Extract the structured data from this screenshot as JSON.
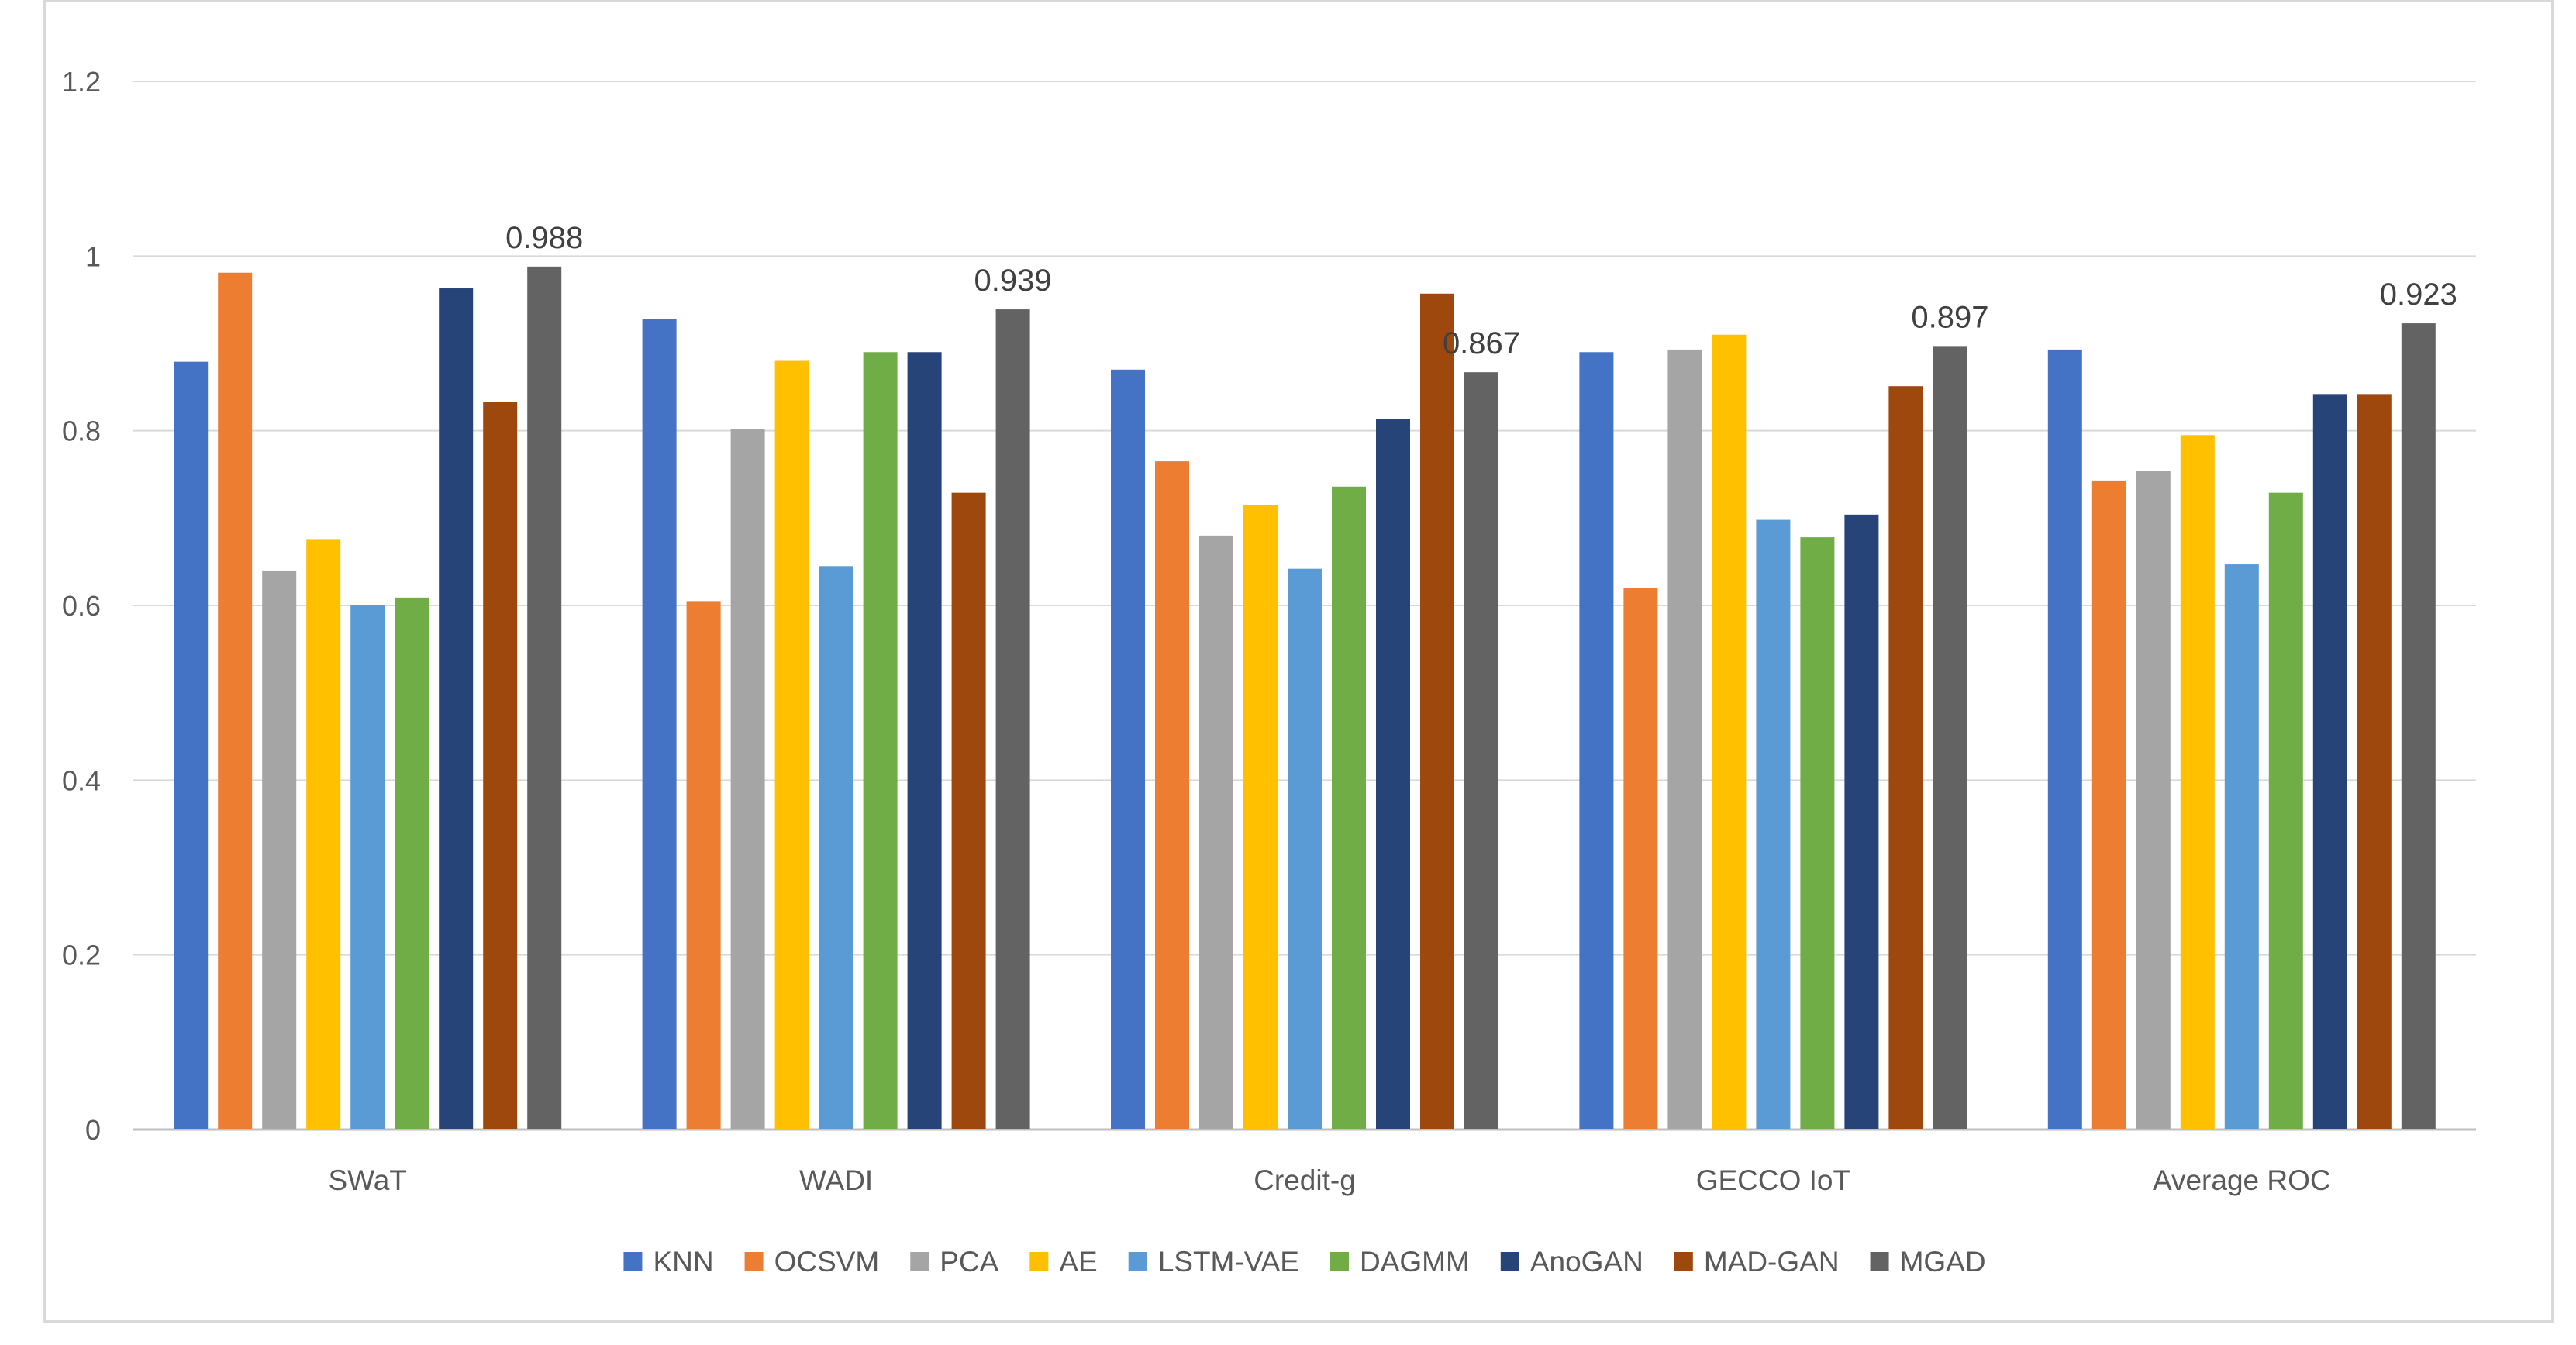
{
  "chart_data": {
    "type": "bar",
    "title": "",
    "xlabel": "",
    "ylabel": "",
    "ylim": [
      0,
      1.2
    ],
    "yticks": [
      0,
      0.2,
      0.4,
      0.6,
      0.8,
      1,
      1.2
    ],
    "ytick_labels": [
      "0",
      "0.2",
      "0.4",
      "0.6",
      "0.8",
      "1",
      "1.2"
    ],
    "categories": [
      "SWaT",
      "WADI",
      "Credit-g",
      "GECCO IoT",
      "Average ROC"
    ],
    "series": [
      {
        "name": "KNN",
        "color": "#4472c4",
        "values": [
          0.879,
          0.928,
          0.87,
          0.89,
          0.893
        ]
      },
      {
        "name": "OCSVM",
        "color": "#ed7d31",
        "values": [
          0.981,
          0.605,
          0.765,
          0.62,
          0.743
        ]
      },
      {
        "name": "PCA",
        "color": "#a5a5a5",
        "values": [
          0.64,
          0.802,
          0.68,
          0.893,
          0.754
        ]
      },
      {
        "name": "AE",
        "color": "#ffc000",
        "values": [
          0.676,
          0.88,
          0.715,
          0.91,
          0.795
        ]
      },
      {
        "name": "LSTM-VAE",
        "color": "#5b9bd5",
        "values": [
          0.6,
          0.645,
          0.642,
          0.698,
          0.647
        ]
      },
      {
        "name": "DAGMM",
        "color": "#70ad47",
        "values": [
          0.609,
          0.89,
          0.736,
          0.678,
          0.729
        ]
      },
      {
        "name": "AnoGAN",
        "color": "#264478",
        "values": [
          0.963,
          0.89,
          0.813,
          0.704,
          0.842
        ]
      },
      {
        "name": "MAD-GAN",
        "color": "#9e480e",
        "values": [
          0.833,
          0.729,
          0.957,
          0.851,
          0.842
        ]
      },
      {
        "name": "MGAD",
        "color": "#636363",
        "values": [
          0.988,
          0.939,
          0.867,
          0.897,
          0.923
        ]
      }
    ],
    "data_labels": {
      "series": "MGAD",
      "texts": [
        "0.988",
        "0.939",
        "0.867",
        "0.897",
        "0.923"
      ]
    },
    "grid": true,
    "legend": "bottom"
  }
}
